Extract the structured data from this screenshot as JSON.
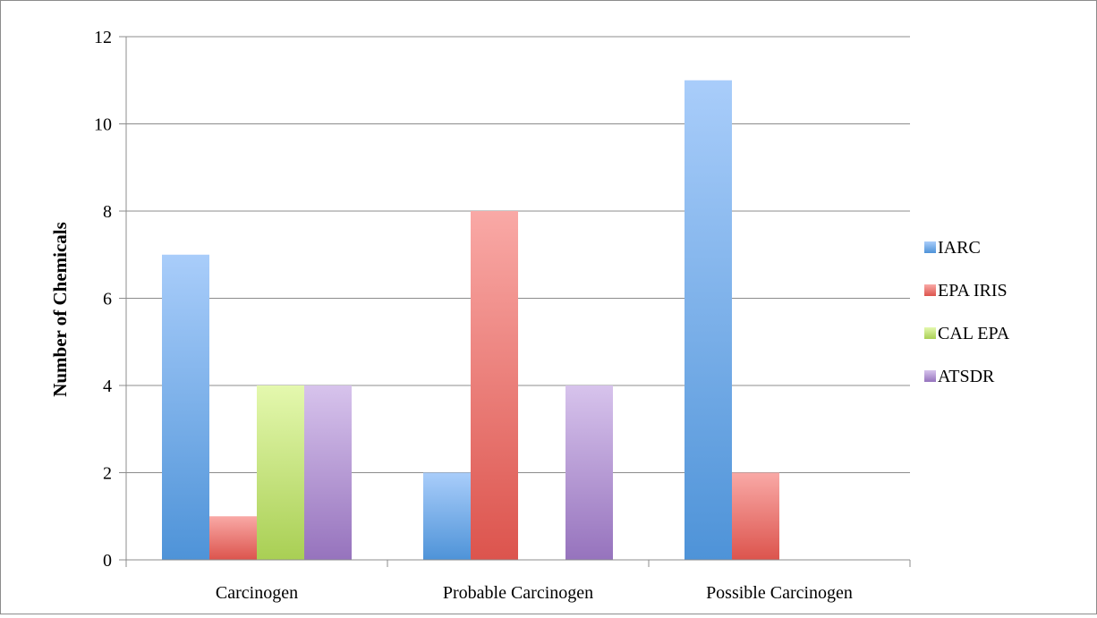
{
  "chart_data": {
    "type": "bar",
    "title": "",
    "xlabel": "",
    "ylabel": "Number of Chemicals",
    "ylim": [
      0,
      12
    ],
    "yticks": [
      0,
      2,
      4,
      6,
      8,
      10,
      12
    ],
    "grid": true,
    "legend_position": "right",
    "categories": [
      "Carcinogen",
      "Probable Carcinogen",
      "Possible Carcinogen"
    ],
    "series": [
      {
        "name": "IARC",
        "values": [
          7,
          2,
          11
        ],
        "color_top": "#a9cdfa",
        "color_bottom": "#4e93d8"
      },
      {
        "name": "EPA IRIS",
        "values": [
          1,
          8,
          2
        ],
        "color_top": "#f9a9a6",
        "color_bottom": "#dc544d"
      },
      {
        "name": "CAL EPA",
        "values": [
          4,
          0,
          0
        ],
        "color_top": "#e4f8ae",
        "color_bottom": "#a9cf54"
      },
      {
        "name": "ATSDR",
        "values": [
          4,
          4,
          0
        ],
        "color_top": "#d7c3ec",
        "color_bottom": "#9673bd"
      }
    ]
  }
}
